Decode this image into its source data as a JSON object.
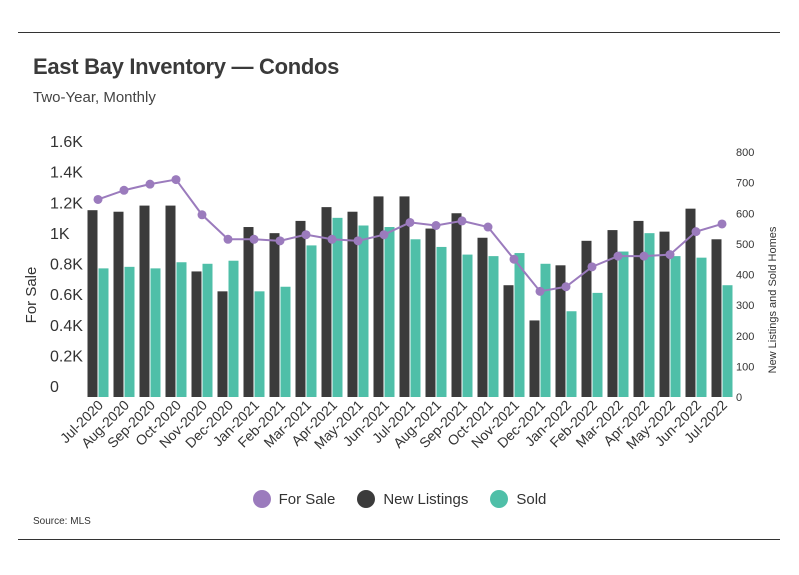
{
  "title": "East Bay Inventory — Condos",
  "subtitle": "Two-Year, Monthly",
  "source": "Source:  MLS",
  "colors": {
    "for_sale": "#9b7bbd",
    "new_listings": "#3b3b3b",
    "sold": "#4fbfa8"
  },
  "chart_data": {
    "type": "bar",
    "categories": [
      "Jul-2020",
      "Aug-2020",
      "Sep-2020",
      "Oct-2020",
      "Nov-2020",
      "Dec-2020",
      "Jan-2021",
      "Feb-2021",
      "Mar-2021",
      "Apr-2021",
      "May-2021",
      "Jun-2021",
      "Jul-2021",
      "Aug-2021",
      "Sep-2021",
      "Oct-2021",
      "Nov-2021",
      "Dec-2021",
      "Jan-2022",
      "Feb-2022",
      "Mar-2022",
      "Apr-2022",
      "May-2022",
      "Jun-2022",
      "Jul-2022"
    ],
    "xlabel": "",
    "ylabel_left": "For Sale",
    "ylabel_right": "New Listings and Sold Homes",
    "ylim_left": [
      0,
      1600
    ],
    "ylim_right": [
      0,
      800
    ],
    "left_tick_labels": [
      "0",
      "0.2K",
      "0.4K",
      "0.6K",
      "0.8K",
      "1K",
      "1.2K",
      "1.4K",
      "1.6K"
    ],
    "right_tick_labels": [
      "0",
      "100",
      "200",
      "300",
      "400",
      "500",
      "600",
      "700",
      "800"
    ],
    "legend_position": "bottom",
    "grid": false,
    "series": [
      {
        "name": "For Sale",
        "type": "line",
        "axis": "left",
        "values": [
          1290,
          1350,
          1390,
          1420,
          1190,
          1030,
          1030,
          1020,
          1060,
          1030,
          1020,
          1060,
          1140,
          1120,
          1150,
          1110,
          900,
          690,
          720,
          850,
          920,
          920,
          930,
          1080,
          1130
        ]
      },
      {
        "name": "New Listings",
        "type": "bar",
        "axis": "right",
        "values": [
          610,
          605,
          625,
          625,
          410,
          345,
          555,
          535,
          575,
          620,
          605,
          655,
          655,
          550,
          600,
          520,
          365,
          250,
          430,
          510,
          545,
          575,
          540,
          615,
          515
        ]
      },
      {
        "name": "Sold",
        "type": "bar",
        "axis": "right",
        "values": [
          420,
          425,
          420,
          440,
          435,
          445,
          345,
          360,
          495,
          585,
          560,
          555,
          515,
          490,
          465,
          460,
          470,
          435,
          280,
          340,
          475,
          535,
          460,
          455,
          365
        ]
      }
    ]
  }
}
